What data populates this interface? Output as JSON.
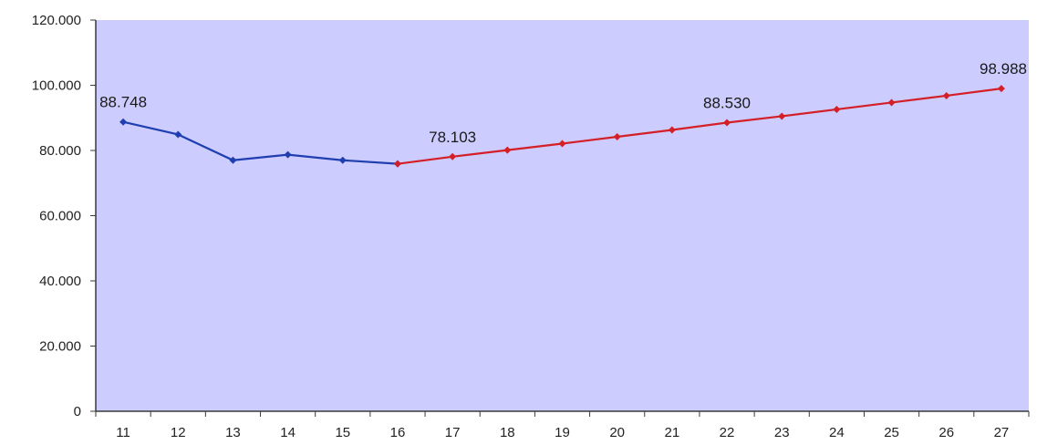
{
  "chart_data": {
    "type": "line",
    "x": [
      "11",
      "12",
      "13",
      "14",
      "15",
      "16",
      "17",
      "18",
      "19",
      "20",
      "21",
      "22",
      "23",
      "24",
      "25",
      "26",
      "27"
    ],
    "series": [
      {
        "color": "#1f3fb0",
        "x": [
          "11",
          "12",
          "13",
          "14",
          "15",
          "16"
        ],
        "values": [
          88.748,
          84.9,
          77.0,
          78.7,
          77.0,
          75.9
        ]
      },
      {
        "color": "#d41f26",
        "x": [
          "16",
          "17",
          "18",
          "19",
          "20",
          "21",
          "22",
          "23",
          "24",
          "25",
          "26",
          "27"
        ],
        "values": [
          75.9,
          78.103,
          80.1,
          82.1,
          84.2,
          86.3,
          88.53,
          90.5,
          92.6,
          94.7,
          96.8,
          98.988
        ]
      }
    ],
    "data_labels": [
      {
        "x": "11",
        "text": "88.748"
      },
      {
        "x": "17",
        "text": "78.103"
      },
      {
        "x": "22",
        "text": "88.530"
      },
      {
        "x": "27",
        "text": "98.988"
      }
    ],
    "ylim": [
      0,
      120
    ],
    "y_ticks": [
      0,
      20,
      40,
      60,
      80,
      100,
      120
    ],
    "y_tick_labels": [
      "0",
      "20.000",
      "40.000",
      "60.000",
      "80.000",
      "100.000",
      "120.000"
    ],
    "plot_background": "#ccccff",
    "grid": false,
    "legend": "none",
    "title": "",
    "xlabel": "",
    "ylabel": ""
  }
}
